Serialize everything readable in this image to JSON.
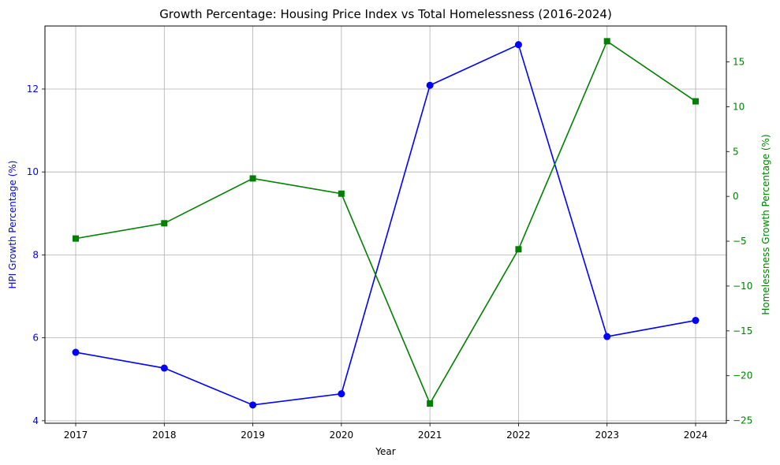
{
  "chart_data": {
    "type": "line",
    "title": "Growth Percentage: Housing Price Index vs Total Homelessness (2016-2024)",
    "xlabel": "Year",
    "ylabel_left": "HPI Growth Percentage (%)",
    "ylabel_right": "Homelessness Growth Percentage (%)",
    "categories": [
      "2017",
      "2018",
      "2019",
      "2020",
      "2021",
      "2022",
      "2023",
      "2024"
    ],
    "ylim_left": [
      3.94,
      13.52
    ],
    "yticks_left": [
      4,
      6,
      8,
      10,
      12
    ],
    "ylim_right": [
      -25.3,
      19.0
    ],
    "yticks_right": [
      -25,
      -20,
      -15,
      -10,
      -5,
      0,
      5,
      10,
      15
    ],
    "grid": true,
    "series": [
      {
        "axis": "left",
        "color": "#0000ff",
        "marker": "circle",
        "values": [
          5.65,
          5.27,
          4.38,
          4.65,
          12.09,
          13.07,
          6.03,
          6.42
        ]
      },
      {
        "axis": "right",
        "color": "#008000",
        "marker": "square",
        "values": [
          -4.7,
          -3.0,
          2.0,
          0.3,
          -23.1,
          -5.9,
          17.3,
          10.6
        ]
      }
    ],
    "colors": {
      "left_axis": "#0000ff",
      "right_axis": "#008000",
      "grid": "#b0b0b0"
    }
  }
}
